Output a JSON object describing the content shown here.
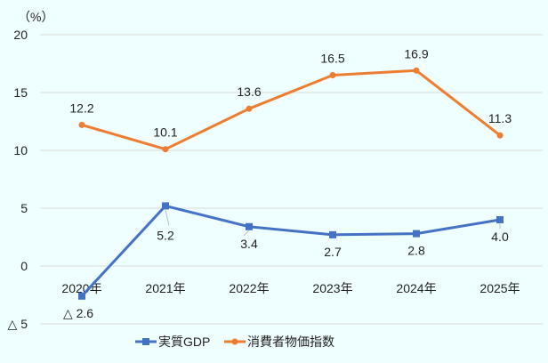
{
  "chart_data": {
    "type": "line",
    "unit_label": "（%）",
    "categories": [
      "2020年",
      "2021年",
      "2022年",
      "2023年",
      "2024年",
      "2025年"
    ],
    "ylim": [
      -5,
      20
    ],
    "yticks": [
      20,
      15,
      10,
      5,
      0,
      -5
    ],
    "ytick_labels": [
      "20",
      "15",
      "10",
      "5",
      "0",
      "△ 5"
    ],
    "grid": true,
    "legend_position": "bottom",
    "series": [
      {
        "name": "実質GDP",
        "values": [
          -2.6,
          5.2,
          3.4,
          2.7,
          2.8,
          4.0
        ],
        "labels": [
          "△ 2.6",
          "5.2",
          "3.4",
          "2.7",
          "2.8",
          "4.0"
        ],
        "color": "#4472c4",
        "marker": "square"
      },
      {
        "name": "消費者物価指数",
        "values": [
          12.2,
          10.1,
          13.6,
          16.5,
          16.9,
          11.3
        ],
        "labels": [
          "12.2",
          "10.1",
          "13.6",
          "16.5",
          "16.9",
          "11.3"
        ],
        "color": "#ed7d31",
        "marker": "circle"
      }
    ]
  }
}
